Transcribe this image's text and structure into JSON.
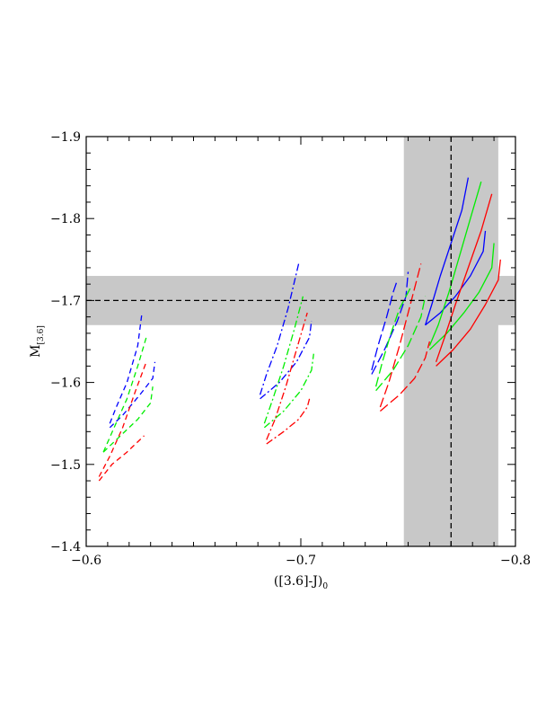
{
  "chart_data": {
    "type": "line",
    "xlabel": "([3.6]-J)",
    "xlabel_subscript": "0",
    "ylabel": "M",
    "ylabel_subscript": "[3.6]",
    "xlim": [
      -0.6,
      -0.8
    ],
    "ylim": [
      -1.4,
      -1.9
    ],
    "x_ticks": [
      -0.6,
      -0.7,
      -0.8
    ],
    "x_tick_labels": [
      "−0.6",
      "−0.7",
      "−0.8"
    ],
    "y_ticks": [
      -1.4,
      -1.5,
      -1.6,
      -1.7,
      -1.8,
      -1.9
    ],
    "y_tick_labels": [
      "−1.4",
      "−1.5",
      "−1.6",
      "−1.7",
      "−1.8",
      "−1.9"
    ],
    "grid": false,
    "colors": {
      "blue": "#0000ff",
      "green": "#00ee00",
      "red": "#ff0000",
      "band": "#c8c8c8",
      "reference": "#000000"
    },
    "reference": {
      "x": -0.77,
      "y": -1.7,
      "x_band": [
        -0.748,
        -0.792
      ],
      "y_band": [
        -1.67,
        -1.73
      ]
    },
    "series": [
      {
        "color": "blue",
        "dash": "dashed",
        "x": [
          -0.611,
          -0.614,
          -0.619,
          -0.624,
          -0.626
        ],
        "y": [
          -1.55,
          -1.57,
          -1.6,
          -1.645,
          -1.685
        ]
      },
      {
        "color": "blue",
        "dash": "dashed",
        "x": [
          -0.611,
          -0.617,
          -0.625,
          -0.631,
          -0.632
        ],
        "y": [
          -1.545,
          -1.56,
          -1.585,
          -1.605,
          -1.625
        ]
      },
      {
        "color": "green",
        "dash": "dashed",
        "x": [
          -0.608,
          -0.613,
          -0.619,
          -0.624,
          -0.628
        ],
        "y": [
          -1.515,
          -1.545,
          -1.58,
          -1.62,
          -1.655
        ]
      },
      {
        "color": "green",
        "dash": "dashed",
        "x": [
          -0.608,
          -0.616,
          -0.624,
          -0.63,
          -0.631
        ],
        "y": [
          -1.515,
          -1.535,
          -1.555,
          -1.575,
          -1.595
        ]
      },
      {
        "color": "red",
        "dash": "dashed",
        "x": [
          -0.606,
          -0.611,
          -0.617,
          -0.623,
          -0.628
        ],
        "y": [
          -1.485,
          -1.51,
          -1.545,
          -1.59,
          -1.625
        ]
      },
      {
        "color": "red",
        "dash": "dashed",
        "x": [
          -0.606,
          -0.612,
          -0.619,
          -0.625,
          -0.627
        ],
        "y": [
          -1.48,
          -1.5,
          -1.515,
          -1.53,
          -1.535
        ]
      },
      {
        "color": "blue",
        "dash": "dashdot",
        "x": [
          -0.681,
          -0.684,
          -0.689,
          -0.694,
          -0.699
        ],
        "y": [
          -1.585,
          -1.61,
          -1.645,
          -1.69,
          -1.745
        ]
      },
      {
        "color": "blue",
        "dash": "dashdot",
        "x": [
          -0.681,
          -0.69,
          -0.698,
          -0.704,
          -0.705
        ],
        "y": [
          -1.58,
          -1.6,
          -1.625,
          -1.655,
          -1.675
        ]
      },
      {
        "color": "green",
        "dash": "dashdot",
        "x": [
          -0.683,
          -0.687,
          -0.692,
          -0.697,
          -0.701
        ],
        "y": [
          -1.55,
          -1.58,
          -1.62,
          -1.665,
          -1.705
        ]
      },
      {
        "color": "green",
        "dash": "dashdot",
        "x": [
          -0.683,
          -0.692,
          -0.7,
          -0.705,
          -0.706
        ],
        "y": [
          -1.545,
          -1.565,
          -1.59,
          -1.615,
          -1.635
        ]
      },
      {
        "color": "red",
        "dash": "dashdot",
        "x": [
          -0.684,
          -0.688,
          -0.693,
          -0.698,
          -0.703
        ],
        "y": [
          -1.53,
          -1.555,
          -1.595,
          -1.64,
          -1.685
        ]
      },
      {
        "color": "red",
        "dash": "dashdot",
        "x": [
          -0.684,
          -0.692,
          -0.699,
          -0.703,
          -0.704
        ],
        "y": [
          -1.525,
          -1.54,
          -1.555,
          -1.57,
          -1.58
        ]
      },
      {
        "color": "blue",
        "dash": "longdash",
        "x": [
          -0.733,
          -0.736,
          -0.74,
          -0.743,
          -0.745
        ],
        "y": [
          -1.615,
          -1.645,
          -1.68,
          -1.71,
          -1.725
        ]
      },
      {
        "color": "blue",
        "dash": "longdash",
        "x": [
          -0.733,
          -0.739,
          -0.745,
          -0.749,
          -0.75
        ],
        "y": [
          -1.61,
          -1.64,
          -1.675,
          -1.705,
          -1.735
        ]
      },
      {
        "color": "green",
        "dash": "longdash",
        "x": [
          -0.735,
          -0.738,
          -0.742,
          -0.746,
          -0.751
        ],
        "y": [
          -1.595,
          -1.625,
          -1.66,
          -1.69,
          -1.715
        ]
      },
      {
        "color": "green",
        "dash": "longdash",
        "x": [
          -0.735,
          -0.743,
          -0.75,
          -0.756,
          -0.758
        ],
        "y": [
          -1.59,
          -1.615,
          -1.645,
          -1.68,
          -1.705
        ]
      },
      {
        "color": "red",
        "dash": "longdash",
        "x": [
          -0.737,
          -0.741,
          -0.746,
          -0.751,
          -0.756
        ],
        "y": [
          -1.57,
          -1.6,
          -1.645,
          -1.695,
          -1.745
        ]
      },
      {
        "color": "red",
        "dash": "longdash",
        "x": [
          -0.737,
          -0.746,
          -0.753,
          -0.758,
          -0.76
        ],
        "y": [
          -1.565,
          -1.585,
          -1.605,
          -1.63,
          -1.65
        ]
      },
      {
        "color": "blue",
        "dash": "solid",
        "x": [
          -0.758,
          -0.761,
          -0.765,
          -0.77,
          -0.775,
          -0.778
        ],
        "y": [
          -1.67,
          -1.695,
          -1.73,
          -1.77,
          -1.81,
          -1.85
        ]
      },
      {
        "color": "blue",
        "dash": "solid",
        "x": [
          -0.758,
          -0.765,
          -0.772,
          -0.779,
          -0.785,
          -0.786
        ],
        "y": [
          -1.67,
          -1.685,
          -1.705,
          -1.73,
          -1.76,
          -1.785
        ]
      },
      {
        "color": "green",
        "dash": "solid",
        "x": [
          -0.76,
          -0.764,
          -0.769,
          -0.774,
          -0.779,
          -0.784
        ],
        "y": [
          -1.645,
          -1.67,
          -1.71,
          -1.755,
          -1.8,
          -1.845
        ]
      },
      {
        "color": "green",
        "dash": "solid",
        "x": [
          -0.76,
          -0.768,
          -0.776,
          -0.783,
          -0.789,
          -0.79
        ],
        "y": [
          -1.64,
          -1.66,
          -1.685,
          -1.71,
          -1.74,
          -1.77
        ]
      },
      {
        "color": "red",
        "dash": "solid",
        "x": [
          -0.763,
          -0.767,
          -0.772,
          -0.778,
          -0.784,
          -0.789
        ],
        "y": [
          -1.625,
          -1.655,
          -1.695,
          -1.74,
          -1.785,
          -1.83
        ]
      },
      {
        "color": "red",
        "dash": "solid",
        "x": [
          -0.763,
          -0.771,
          -0.779,
          -0.786,
          -0.792,
          -0.793
        ],
        "y": [
          -1.62,
          -1.64,
          -1.665,
          -1.695,
          -1.725,
          -1.75
        ]
      }
    ]
  }
}
